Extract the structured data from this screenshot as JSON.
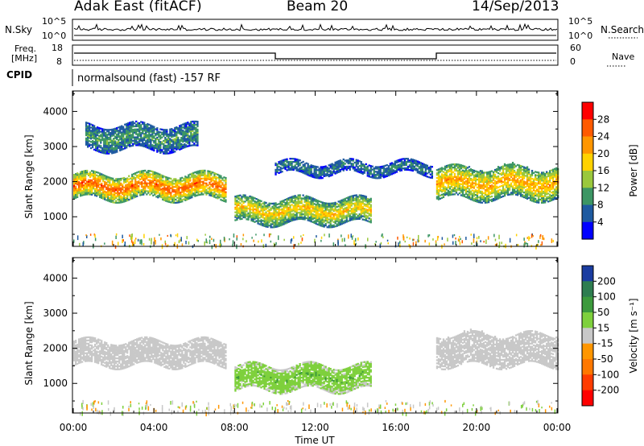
{
  "header": {
    "station": "Adak East (fitACF)",
    "beam": "Beam 20",
    "date": "14/Sep/2013"
  },
  "noise_panel": {
    "left_label": "N.Sky",
    "right_label": "N.Search",
    "left_ticks": [
      "10^5",
      "10^0"
    ],
    "right_ticks": [
      "10^5",
      "10^0"
    ]
  },
  "freq_panel": {
    "left_label_line1": "Freq.",
    "left_label_line2": "[MHz]",
    "right_label": "Nave",
    "left_ticks": [
      "18",
      "8"
    ],
    "right_ticks": [
      "60",
      "0"
    ]
  },
  "cpid_panel": {
    "label": "CPID",
    "text": "normalsound (fast) -157 RF"
  },
  "power_colorbar": {
    "label": "Power [dB]",
    "ticks": [
      "28",
      "24",
      "20",
      "16",
      "12",
      "8",
      "4"
    ],
    "colors": [
      "#ff0000",
      "#ff5a00",
      "#ff9600",
      "#ffd200",
      "#9ac83c",
      "#3c9664",
      "#1e5aa0",
      "#0000ff"
    ]
  },
  "velocity_colorbar": {
    "label": "Velocity [m s⁻¹]",
    "ticks": [
      "200",
      "100",
      "50",
      "15",
      "-15",
      "-50",
      "-100",
      "-200"
    ],
    "colors": [
      "#1a3ca0",
      "#2e7d50",
      "#3c9a3c",
      "#7ed03c",
      "#c8c8c8",
      "#ff9600",
      "#ff7800",
      "#ff3c00",
      "#ff0000"
    ]
  },
  "chart_data": [
    {
      "type": "heatmap",
      "title": "Power",
      "ylabel": "Slant Range [km]",
      "xlabel": "Time UT",
      "x_ticks": [
        "00:00",
        "04:00",
        "08:00",
        "12:00",
        "16:00",
        "20:00",
        "00:00"
      ],
      "y_ticks": [
        1000,
        2000,
        3000,
        4000
      ],
      "xlim_hours": [
        0,
        24
      ],
      "ylim_km": [
        180,
        4560
      ],
      "echo_bands": [
        {
          "start_h": 0.0,
          "end_h": 7.6,
          "range_km": [
            1500,
            2200
          ],
          "value": 22
        },
        {
          "start_h": 0.6,
          "end_h": 6.2,
          "range_km": [
            2900,
            3600
          ],
          "value": 8
        },
        {
          "start_h": 8.0,
          "end_h": 14.8,
          "range_km": [
            800,
            1500
          ],
          "value": 16
        },
        {
          "start_h": 10.0,
          "end_h": 17.8,
          "range_km": [
            2200,
            2550
          ],
          "value": 6
        },
        {
          "start_h": 18.0,
          "end_h": 24.0,
          "range_km": [
            1500,
            2400
          ],
          "value": 18
        }
      ]
    },
    {
      "type": "heatmap",
      "title": "Velocity",
      "ylabel": "Slant Range [km]",
      "xlabel": "Time UT",
      "x_ticks": [
        "00:00",
        "04:00",
        "08:00",
        "12:00",
        "16:00",
        "20:00",
        "00:00"
      ],
      "y_ticks": [
        1000,
        2000,
        3000,
        4000
      ],
      "xlim_hours": [
        0,
        24
      ],
      "ylim_km": [
        180,
        4560
      ],
      "echo_bands": [
        {
          "start_h": 0.0,
          "end_h": 7.6,
          "range_km": [
            1500,
            2200
          ],
          "value": 0
        },
        {
          "start_h": 8.0,
          "end_h": 14.8,
          "range_km": [
            800,
            1500
          ],
          "value": 40
        },
        {
          "start_h": 18.0,
          "end_h": 24.0,
          "range_km": [
            1500,
            2400
          ],
          "value": 0
        }
      ]
    }
  ]
}
